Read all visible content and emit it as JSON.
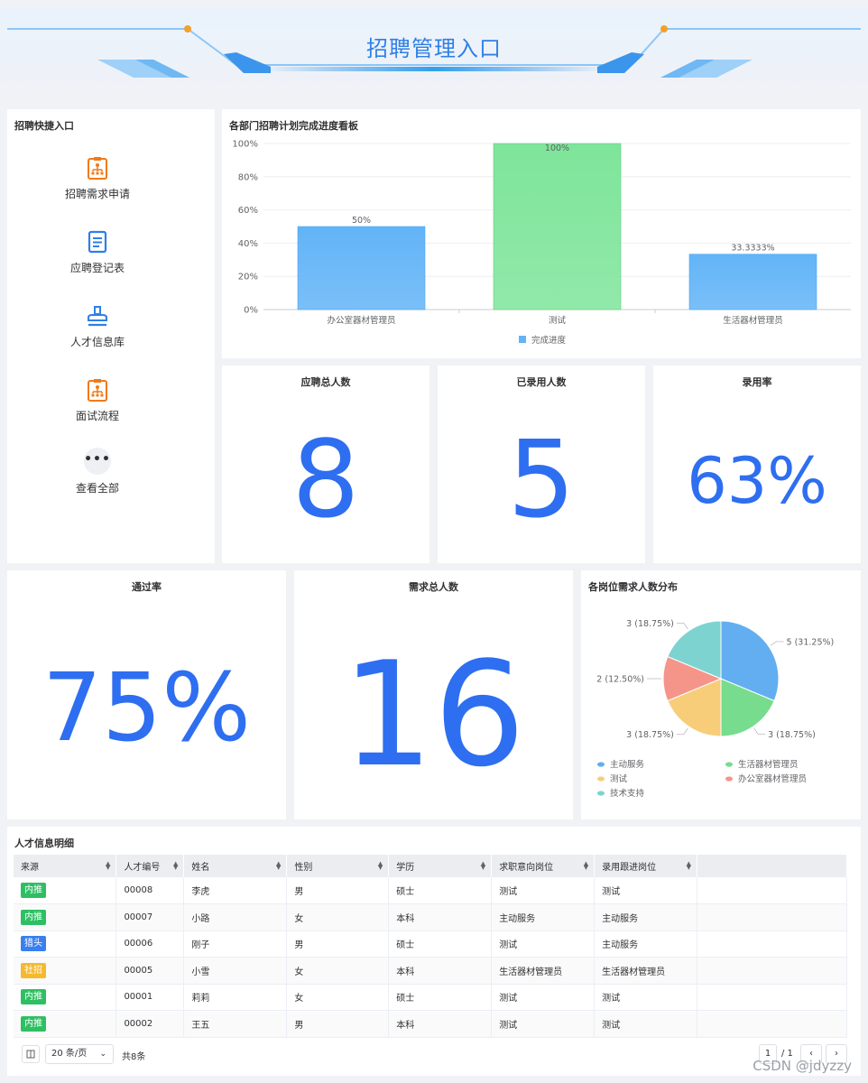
{
  "header": {
    "title": "招聘管理入口"
  },
  "quick": {
    "title": "招聘快捷入口",
    "items": [
      {
        "label": "招聘需求申请",
        "icon": "org-clipboard-icon"
      },
      {
        "label": "应聘登记表",
        "icon": "document-icon"
      },
      {
        "label": "人才信息库",
        "icon": "stamp-icon"
      },
      {
        "label": "面试流程",
        "icon": "org-clipboard-icon"
      },
      {
        "label": "查看全部",
        "icon": "more-icon"
      }
    ]
  },
  "progress": {
    "title": "各部门招聘计划完成进度看板",
    "chart_data": {
      "type": "bar",
      "categories": [
        "办公室器材管理员",
        "测试",
        "生活器材管理员"
      ],
      "values": [
        50,
        100,
        33.3333
      ],
      "value_labels": [
        "50%",
        "100%",
        "33.3333%"
      ],
      "series_name": "完成进度",
      "yticks": [
        "0%",
        "20%",
        "40%",
        "60%",
        "80%",
        "100%"
      ],
      "ylim": [
        0,
        100
      ],
      "colors": [
        "#62b4f7",
        "#7ee59a",
        "#62b4f7"
      ],
      "legend": "bottom"
    }
  },
  "stats": {
    "applicants": {
      "label": "应聘总人数",
      "value": "8"
    },
    "hired": {
      "label": "已录用人数",
      "value": "5"
    },
    "hire_rate": {
      "label": "录用率",
      "value": "63%"
    },
    "pass_rate": {
      "label": "通过率",
      "value": "75%"
    },
    "demand": {
      "label": "需求总人数",
      "value": "16"
    }
  },
  "distribution": {
    "title": "各岗位需求人数分布",
    "chart_data": {
      "type": "pie",
      "slices": [
        {
          "name": "主动服务",
          "value": 5,
          "label": "5 (31.25%)",
          "color": "#62aef0"
        },
        {
          "name": "生活器材管理员",
          "value": 3,
          "label": "3 (18.75%)",
          "color": "#78dc8e"
        },
        {
          "name": "测试",
          "value": 3,
          "label": "3 (18.75%)",
          "color": "#f7cd7a"
        },
        {
          "name": "办公室器材管理员",
          "value": 2,
          "label": "2 (12.50%)",
          "color": "#f5958a"
        },
        {
          "name": "技术支持",
          "value": 3,
          "label": "3 (18.75%)",
          "color": "#7dd3cf"
        }
      ],
      "legend": "bottom"
    }
  },
  "talent": {
    "title": "人才信息明细",
    "columns": [
      "来源",
      "人才编号",
      "姓名",
      "性别",
      "学历",
      "求职意向岗位",
      "录用跟进岗位"
    ],
    "rows": [
      {
        "source": "内推",
        "source_color": "#2fbf63",
        "id": "00008",
        "name": "李虎",
        "gender": "男",
        "edu": "硕士",
        "intent": "测试",
        "follow": "测试"
      },
      {
        "source": "内推",
        "source_color": "#2fbf63",
        "id": "00007",
        "name": "小路",
        "gender": "女",
        "edu": "本科",
        "intent": "主动服务",
        "follow": "主动服务"
      },
      {
        "source": "猎头",
        "source_color": "#3a7ff0",
        "id": "00006",
        "name": "刚子",
        "gender": "男",
        "edu": "硕士",
        "intent": "测试",
        "follow": "主动服务"
      },
      {
        "source": "社招",
        "source_color": "#f5b92e",
        "id": "00005",
        "name": "小雪",
        "gender": "女",
        "edu": "本科",
        "intent": "生活器材管理员",
        "follow": "生活器材管理员"
      },
      {
        "source": "内推",
        "source_color": "#2fbf63",
        "id": "00001",
        "name": "莉莉",
        "gender": "女",
        "edu": "硕士",
        "intent": "测试",
        "follow": "测试"
      },
      {
        "source": "内推",
        "source_color": "#2fbf63",
        "id": "00002",
        "name": "王五",
        "gender": "男",
        "edu": "本科",
        "intent": "测试",
        "follow": "测试"
      }
    ],
    "pager": {
      "page_size": "20 条/页",
      "total": "共8条",
      "page": "1",
      "pages": "/ 1"
    }
  },
  "watermark": "CSDN @jdyzzy"
}
